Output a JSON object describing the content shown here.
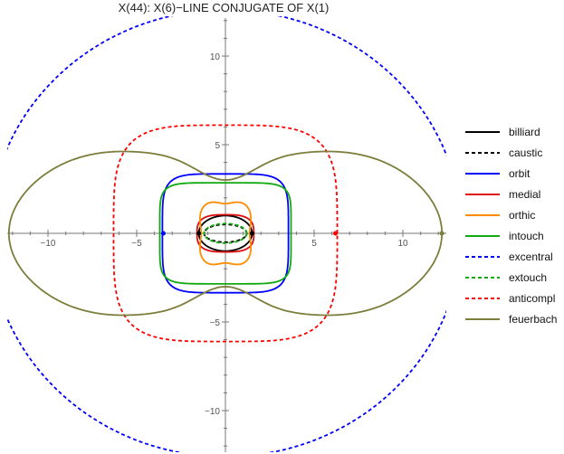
{
  "chart_data": {
    "type": "line",
    "title": "X(44): X(6)−LINE CONJUGATE OF X(1)",
    "xlabel": "",
    "ylabel": "",
    "xlim": [
      -12.2,
      12.4
    ],
    "ylim": [
      -12.4,
      12.4
    ],
    "x_ticks": [
      {
        "value": -10,
        "label": "−10"
      },
      {
        "value": -5,
        "label": "−5"
      },
      {
        "value": 5,
        "label": "5"
      },
      {
        "value": 10,
        "label": "10"
      }
    ],
    "y_ticks": [
      {
        "value": 10,
        "label": "10"
      },
      {
        "value": 5,
        "label": "5"
      },
      {
        "value": -5,
        "label": "−5"
      },
      {
        "value": -10,
        "label": "−10"
      }
    ],
    "grid": false,
    "legend_position": "right",
    "series": [
      {
        "name": "billiard",
        "color": "#000000",
        "dash": "solid",
        "curve": "ellipse",
        "a": 1.5,
        "b": 1.0
      },
      {
        "name": "caustic",
        "color": "#000000",
        "dash": "dashed",
        "curve": "ellipse",
        "a": 1.2,
        "b": 0.5
      },
      {
        "name": "orbit",
        "color": "#0000ff",
        "dash": "solid",
        "curve": "superellipse",
        "a": 3.55,
        "b": 3.35,
        "n": 5
      },
      {
        "name": "medial",
        "color": "#dd1111",
        "dash": "solid",
        "curve": "superellipse",
        "a": 1.6,
        "b": 1.05,
        "n": 3
      },
      {
        "name": "orthic",
        "color": "#ff8c00",
        "dash": "solid",
        "curve": "quadrifolium",
        "a": 1.55,
        "b": 1.9
      },
      {
        "name": "intouch",
        "color": "#11aa11",
        "dash": "solid",
        "curve": "superellipse",
        "a": 3.7,
        "b": 2.85,
        "n": 6
      },
      {
        "name": "excentral",
        "color": "#0000ff",
        "dash": "dashed",
        "curve": "ellipse",
        "a": 13.3,
        "b": 12.6
      },
      {
        "name": "extouch",
        "color": "#11aa11",
        "dash": "dashed",
        "curve": "ellipse",
        "a": 1.2,
        "b": 0.55
      },
      {
        "name": "anticompl",
        "color": "#ff0000",
        "dash": "dashed",
        "curve": "superellipse",
        "a": 6.3,
        "b": 6.1,
        "n": 4
      },
      {
        "name": "feuerbach",
        "color": "#7d7d3c",
        "dash": "solid",
        "curve": "lobes",
        "a": 12.2,
        "b": 6.1,
        "dip": 4.3
      }
    ],
    "points": [
      {
        "x": -1.5,
        "y": 0,
        "color": "#000000"
      },
      {
        "x": 1.5,
        "y": 0,
        "color": "#000000"
      },
      {
        "x": -3.5,
        "y": 0,
        "color": "#0000ff"
      },
      {
        "x": 6.2,
        "y": 0,
        "color": "#ff0000"
      },
      {
        "x": 12.2,
        "y": 0,
        "color": "#7d7d3c"
      }
    ]
  }
}
